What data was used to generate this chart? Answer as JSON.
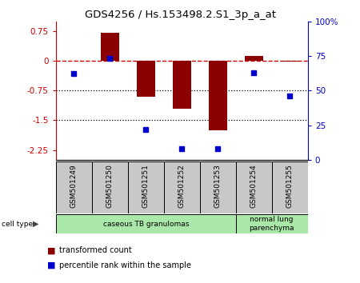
{
  "title": "GDS4256 / Hs.153498.2.S1_3p_a_at",
  "samples": [
    "GSM501249",
    "GSM501250",
    "GSM501251",
    "GSM501252",
    "GSM501253",
    "GSM501254",
    "GSM501255"
  ],
  "transformed_count": [
    0.0,
    0.7,
    -0.9,
    -1.2,
    -1.75,
    0.12,
    -0.02
  ],
  "percentile_rank": [
    62,
    73,
    22,
    8,
    8,
    63,
    46
  ],
  "ylim_left": [
    -2.5,
    1.0
  ],
  "ylim_right": [
    0,
    100
  ],
  "yticks_left": [
    0.75,
    0,
    -0.75,
    -1.5,
    -2.25
  ],
  "yticks_right": [
    100,
    75,
    50,
    25,
    0
  ],
  "hlines_dotted": [
    -0.75,
    -1.5
  ],
  "cell_type_groups": [
    {
      "label": "caseous TB granulomas",
      "start": 0,
      "end": 5,
      "color": "#aae8aa"
    },
    {
      "label": "normal lung\nparenchyma",
      "start": 5,
      "end": 7,
      "color": "#aae8aa"
    }
  ],
  "bar_color": "#8B0000",
  "dot_color": "#0000CC",
  "ref_line_color": "#CC0000",
  "dotted_line_color": "#000000",
  "sample_box_color": "#C8C8C8",
  "legend_items": [
    {
      "label": "transformed count",
      "color": "#8B0000"
    },
    {
      "label": "percentile rank within the sample",
      "color": "#0000CC"
    }
  ],
  "cell_type_label": "cell type"
}
